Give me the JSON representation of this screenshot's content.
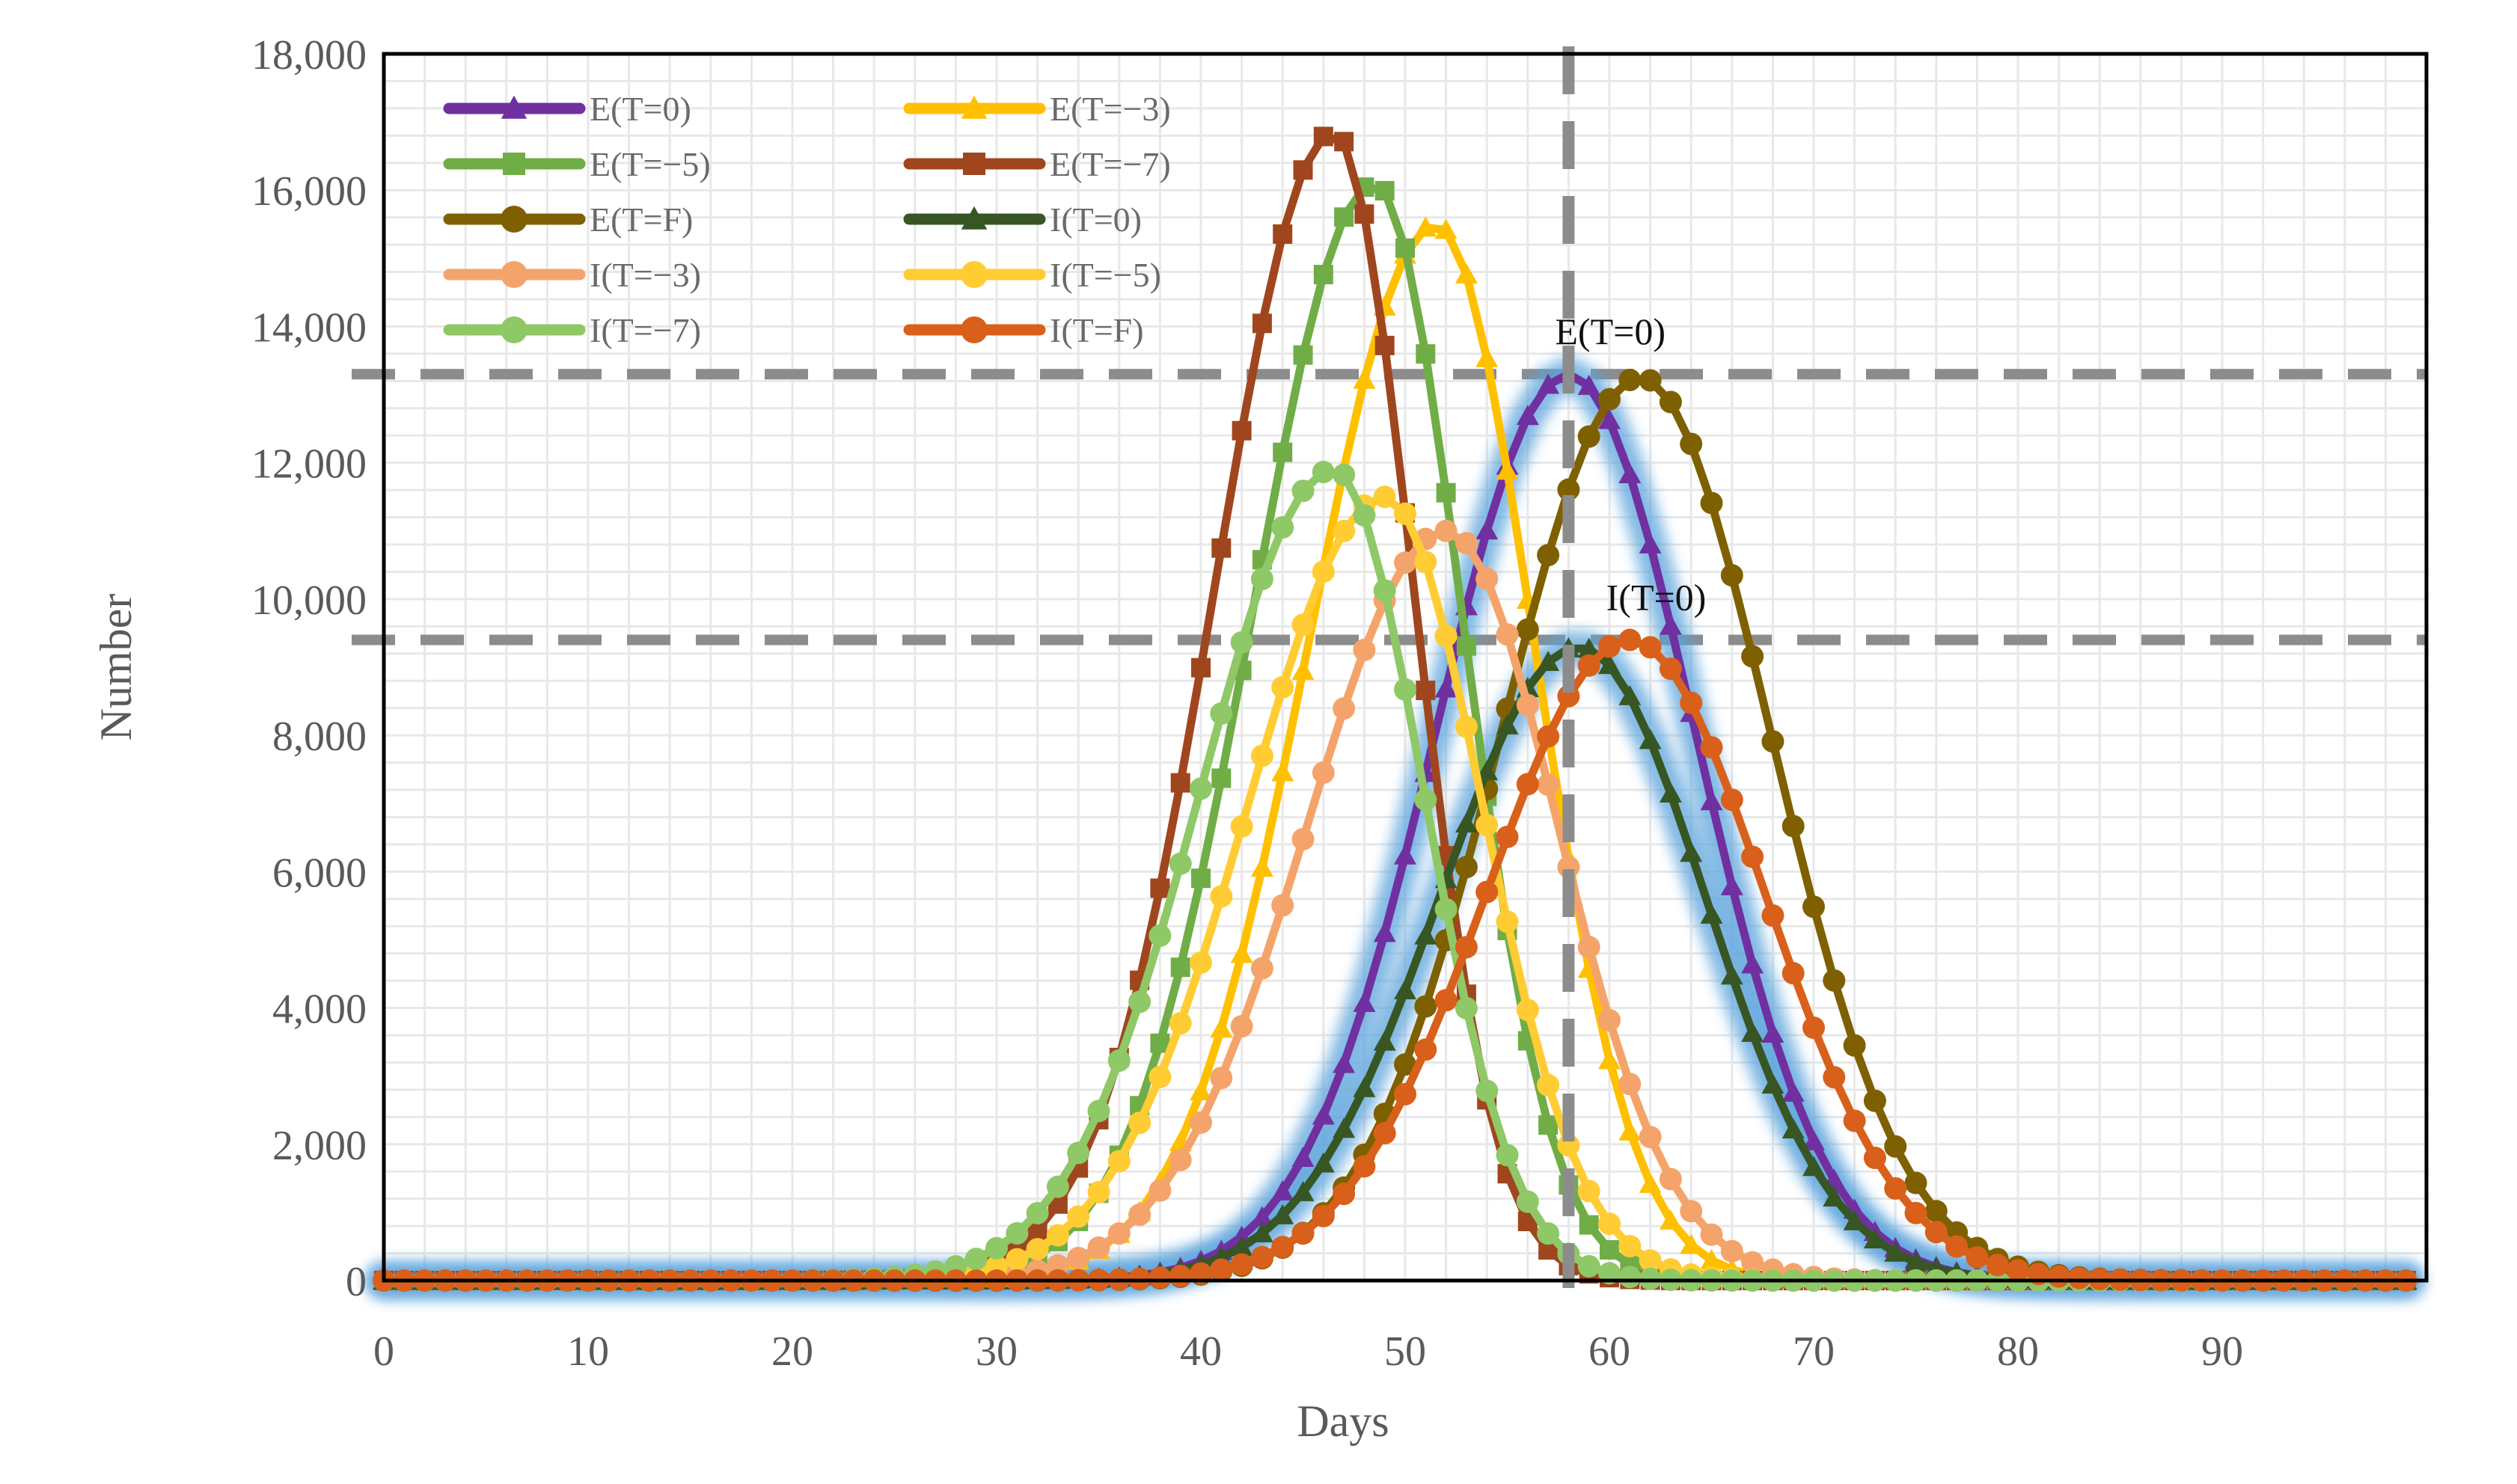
{
  "chart_data": {
    "type": "line",
    "title": "",
    "xlabel": "Days",
    "ylabel": "Number",
    "xlim": [
      0,
      100
    ],
    "ylim": [
      0,
      18000
    ],
    "x_ticks": [
      0,
      10,
      20,
      30,
      40,
      50,
      60,
      70,
      80,
      90
    ],
    "x_tick_labels": [
      "0",
      "10",
      "20",
      "30",
      "40",
      "50",
      "60",
      "70",
      "80",
      "90"
    ],
    "y_ticks": [
      0,
      2000,
      4000,
      6000,
      8000,
      10000,
      12000,
      14000,
      16000,
      18000
    ],
    "y_tick_labels": [
      "0",
      "2,000",
      "4,000",
      "6,000",
      "8,000",
      "10,000",
      "12,000",
      "14,000",
      "16,000",
      "18,000"
    ],
    "grid": true,
    "legend_position": "top-left",
    "series": [
      {
        "name": "E(T=0)",
        "color": "#7030a0",
        "marker": "triangle",
        "peak_day": 58,
        "peak": 13300,
        "sigma_left": 6.5,
        "sigma_right": 6.2,
        "highlight": true
      },
      {
        "name": "E(T=−3)",
        "color": "#ffc000",
        "marker": "triangle",
        "peak_day": 51.5,
        "peak": 15500,
        "sigma_left": 6.2,
        "sigma_right": 4.8,
        "highlight": false
      },
      {
        "name": "E(T=−5)",
        "color": "#70ad47",
        "marker": "square",
        "peak_day": 48.5,
        "peak": 16100,
        "sigma_left": 6.0,
        "sigma_right": 4.3,
        "highlight": false
      },
      {
        "name": "E(T=−7)",
        "color": "#a0461e",
        "marker": "square",
        "peak_day": 46.5,
        "peak": 16850,
        "sigma_left": 5.8,
        "sigma_right": 3.9,
        "highlight": false
      },
      {
        "name": "E(T=F)",
        "color": "#7f6000",
        "marker": "circle",
        "peak_day": 61.5,
        "peak": 13250,
        "sigma_left": 6.8,
        "sigma_right": 6.4,
        "highlight": false
      },
      {
        "name": "I(T=0)",
        "color": "#375623",
        "marker": "triangle",
        "peak_day": 58.5,
        "peak": 9300,
        "sigma_left": 6.8,
        "sigma_right": 6.2,
        "highlight": true
      },
      {
        "name": "I(T=−3)",
        "color": "#f4a46a",
        "marker": "circle",
        "peak_day": 52,
        "peak": 11000,
        "sigma_left": 6.8,
        "sigma_right": 5.5,
        "highlight": false
      },
      {
        "name": "I(T=−5)",
        "color": "#ffcc33",
        "marker": "circle",
        "peak_day": 49,
        "peak": 11500,
        "sigma_left": 6.7,
        "sigma_right": 4.8,
        "highlight": false
      },
      {
        "name": "I(T=−7)",
        "color": "#8fc866",
        "marker": "circle",
        "peak_day": 46.5,
        "peak": 11900,
        "sigma_left": 6.5,
        "sigma_right": 4.4,
        "highlight": false
      },
      {
        "name": "I(T=F)",
        "color": "#d9601a",
        "marker": "circle",
        "peak_day": 61,
        "peak": 9400,
        "sigma_left": 7.0,
        "sigma_right": 6.6,
        "highlight": false
      }
    ],
    "reference_lines": {
      "vertical_x": 58,
      "horizontal_y": [
        13300,
        9400
      ]
    },
    "annotations": [
      {
        "text": "E(T=0)",
        "x": 58,
        "y": 13300
      },
      {
        "text": "I(T=0)",
        "x": 60.5,
        "y": 9400
      }
    ]
  }
}
